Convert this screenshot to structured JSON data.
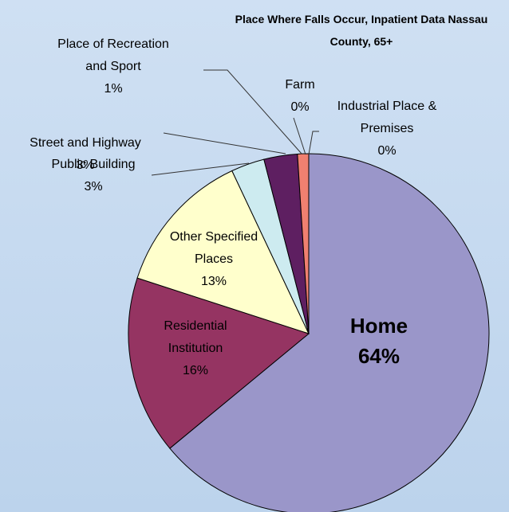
{
  "chart_data": {
    "type": "pie",
    "title": "Place Where Falls Occur, Inpatient Data Nassau County, 65+",
    "categories": [
      "Home",
      "Residential Institution",
      "Other Specified Places",
      "Public Building",
      "Street and Highway",
      "Place of Recreation and Sport",
      "Farm",
      "Industrial Place & Premises"
    ],
    "values": [
      64,
      16,
      13,
      3,
      3,
      1,
      0,
      0
    ],
    "value_labels": [
      "64%",
      "16%",
      "13%",
      "3%",
      "3%",
      "1%",
      "0%",
      "0%"
    ],
    "colors": [
      "#9a96c9",
      "#953462",
      "#ffffcc",
      "#cdebf0",
      "#5e1f61",
      "#f08070",
      "#e8e8e8",
      "#1f6ac0"
    ]
  }
}
